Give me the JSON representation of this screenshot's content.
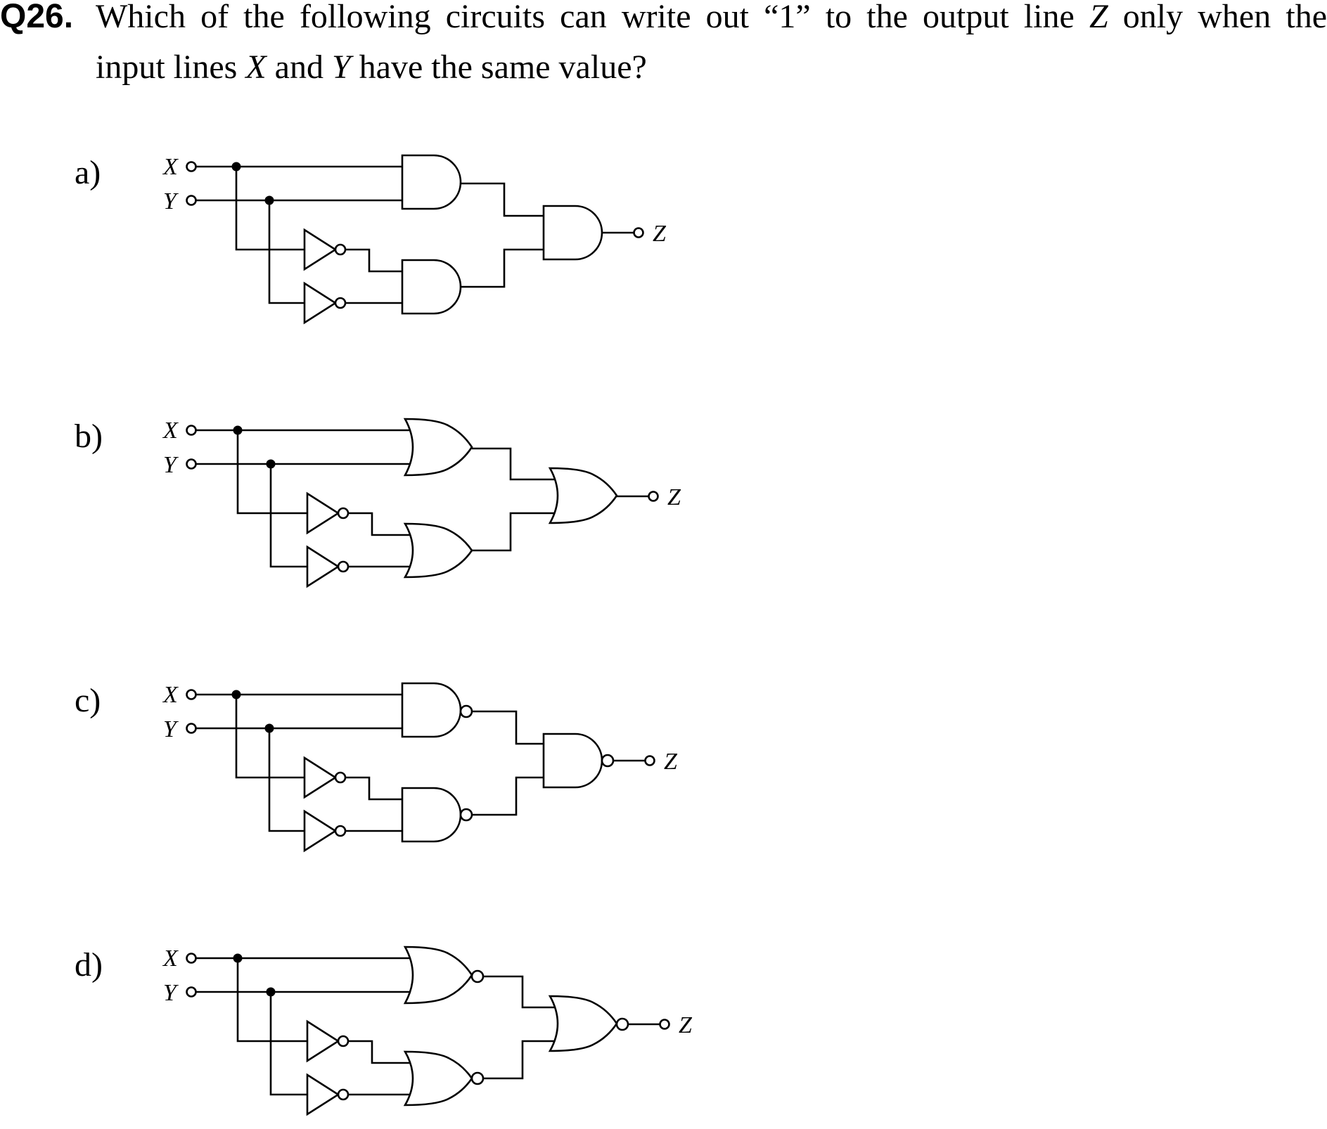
{
  "question": {
    "number": "Q26.",
    "line1_pre": "Which of the following circuits can write out “1” to the output line ",
    "line1_var": "Z",
    "line1_post": " only when the",
    "line2_pre": "input lines ",
    "line2_var1": "X",
    "line2_mid": " and ",
    "line2_var2": "Y",
    "line2_post": " have the same value?"
  },
  "options": [
    {
      "label": "a)",
      "first_gate": "AND",
      "output_gate": "AND",
      "first_inverted": false,
      "output_inverted": false,
      "input1": "X",
      "input2": "Y",
      "output": "Z"
    },
    {
      "label": "b)",
      "first_gate": "OR",
      "output_gate": "OR",
      "first_inverted": false,
      "output_inverted": false,
      "input1": "X",
      "input2": "Y",
      "output": "Z"
    },
    {
      "label": "c)",
      "first_gate": "AND",
      "output_gate": "AND",
      "first_inverted": true,
      "output_inverted": true,
      "input1": "X",
      "input2": "Y",
      "output": "Z"
    },
    {
      "label": "d)",
      "first_gate": "OR",
      "output_gate": "OR",
      "first_inverted": true,
      "output_inverted": true,
      "input1": "X",
      "input2": "Y",
      "output": "Z"
    }
  ]
}
